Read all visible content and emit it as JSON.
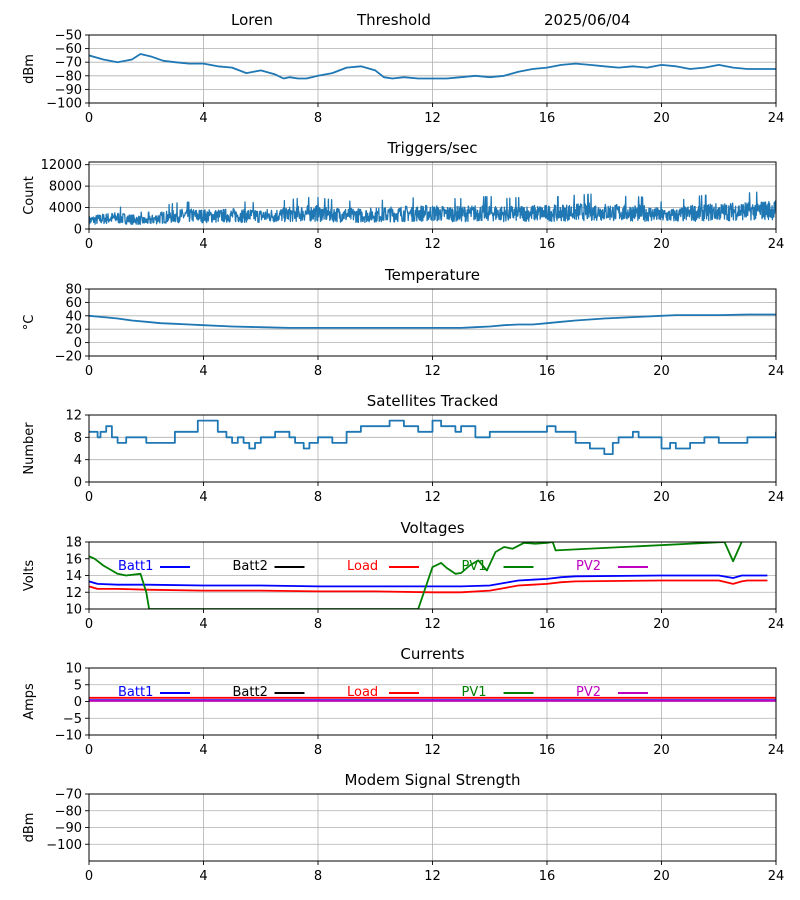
{
  "header": {
    "station": "Loren",
    "mode": "Threshold",
    "date": "2025/06/04"
  },
  "x_axis": {
    "ticks": [
      0,
      4,
      8,
      12,
      16,
      20,
      24
    ],
    "range": [
      0,
      24
    ]
  },
  "chart_data": [
    {
      "type": "line",
      "title": "",
      "ylabel": "dBm",
      "ylim": [
        -100,
        -50
      ],
      "yticks": [
        -100,
        -90,
        -80,
        -70,
        -60,
        -50
      ],
      "grid": true,
      "series": [
        {
          "color": "#1f77b4",
          "x": [
            0,
            0.5,
            1.0,
            1.5,
            1.8,
            2.2,
            2.6,
            3.0,
            3.5,
            4.0,
            4.5,
            5.0,
            5.5,
            6.0,
            6.5,
            6.8,
            7.0,
            7.3,
            7.6,
            8.0,
            8.5,
            9.0,
            9.5,
            10.0,
            10.3,
            10.6,
            11.0,
            11.5,
            12.0,
            12.5,
            13.0,
            13.5,
            14.0,
            14.5,
            15.0,
            15.5,
            16.0,
            16.5,
            17.0,
            17.5,
            18.0,
            18.5,
            19.0,
            19.5,
            20.0,
            20.5,
            21.0,
            21.5,
            22.0,
            22.5,
            23.0,
            23.5,
            24.0
          ],
          "y": [
            -65,
            -68,
            -70,
            -68,
            -64,
            -66,
            -69,
            -70,
            -71,
            -71,
            -73,
            -74,
            -78,
            -76,
            -79,
            -82,
            -81,
            -82,
            -82,
            -80,
            -78,
            -74,
            -73,
            -76,
            -81,
            -82,
            -81,
            -82,
            -82,
            -82,
            -81,
            -80,
            -81,
            -80,
            -77,
            -75,
            -74,
            -72,
            -71,
            -72,
            -73,
            -74,
            -73,
            -74,
            -72,
            -73,
            -75,
            -74,
            -72,
            -74,
            -75,
            -75,
            -75
          ]
        }
      ]
    },
    {
      "type": "line",
      "title": "Triggers/sec",
      "ylabel": "Count",
      "ylim": [
        0,
        12500
      ],
      "yticks": [
        0,
        4000,
        8000,
        12000
      ],
      "grid": true,
      "series": [
        {
          "color": "#1f77b4",
          "x": [
            0,
            0.5,
            1,
            1.5,
            2,
            2.5,
            3,
            3.5,
            4,
            4.5,
            5,
            5.5,
            6,
            6.5,
            7,
            7.5,
            8,
            8.5,
            9,
            9.5,
            10,
            10.5,
            11,
            11.5,
            12,
            12.5,
            13,
            13.5,
            14,
            14.5,
            15,
            15.5,
            16,
            16.5,
            17,
            17.5,
            18,
            18.5,
            19,
            19.5,
            20,
            20.5,
            21,
            21.5,
            22,
            22.5,
            23,
            23.5,
            24
          ],
          "y": [
            1500,
            1800,
            2000,
            1700,
            1400,
            2000,
            2300,
            2400,
            2300,
            2300,
            2400,
            2400,
            2300,
            2400,
            2600,
            2800,
            2800,
            2600,
            2500,
            2400,
            2500,
            2600,
            2700,
            2800,
            2800,
            2700,
            2700,
            2800,
            2900,
            2700,
            2800,
            2800,
            2800,
            2900,
            3000,
            3100,
            3000,
            2900,
            2900,
            2800,
            2400,
            2400,
            2800,
            3000,
            3000,
            3100,
            3200,
            3300,
            3400
          ]
        }
      ]
    },
    {
      "type": "line",
      "title": "Temperature",
      "ylabel": "°C",
      "ylim": [
        -20,
        80
      ],
      "yticks": [
        -20,
        0,
        20,
        40,
        60,
        80
      ],
      "grid": true,
      "series": [
        {
          "color": "#1f77b4",
          "x": [
            0,
            0.5,
            1,
            1.5,
            2,
            2.5,
            3,
            3.5,
            4,
            5,
            6,
            7,
            8,
            9,
            10,
            11,
            12,
            13,
            13.5,
            14,
            14.5,
            15,
            15.5,
            16,
            16.5,
            17,
            18,
            19,
            19.5,
            20,
            20.5,
            21,
            22,
            23,
            24
          ],
          "y": [
            40,
            38,
            36,
            33,
            31,
            29,
            28,
            27,
            26,
            24,
            23,
            22,
            22,
            22,
            22,
            22,
            22,
            22,
            23,
            24,
            26,
            27,
            27,
            29,
            31,
            33,
            36,
            38,
            39,
            40,
            41,
            41,
            41,
            42,
            42
          ]
        }
      ]
    },
    {
      "type": "line",
      "title": "Satellites Tracked",
      "ylabel": "Number",
      "ylim": [
        0,
        12
      ],
      "yticks": [
        0,
        4,
        8,
        12
      ],
      "grid": true,
      "series": [
        {
          "color": "#1f77b4",
          "step": true,
          "x": [
            0,
            0.3,
            0.4,
            0.6,
            0.8,
            1.0,
            1.3,
            1.8,
            2.0,
            3.0,
            3.5,
            3.8,
            4.5,
            4.8,
            5.0,
            5.2,
            5.4,
            5.6,
            5.8,
            6.0,
            6.5,
            7.0,
            7.2,
            7.5,
            7.7,
            8.0,
            8.5,
            9.0,
            9.5,
            10.0,
            10.5,
            11.0,
            11.5,
            12.0,
            12.3,
            12.8,
            13.0,
            13.5,
            14.0,
            15.5,
            16.0,
            16.3,
            17.0,
            17.5,
            18.0,
            18.3,
            18.5,
            19.0,
            19.2,
            20.0,
            20.3,
            20.5,
            21.0,
            21.5,
            22.0,
            22.5,
            23.0,
            23.5,
            24.0
          ],
          "y": [
            9,
            8,
            9,
            10,
            8,
            7,
            8,
            8,
            7,
            9,
            9,
            11,
            9,
            8,
            7,
            8,
            7,
            6,
            7,
            8,
            9,
            8,
            7,
            6,
            7,
            8,
            7,
            9,
            10,
            10,
            11,
            10,
            9,
            11,
            10,
            9,
            10,
            8,
            9,
            9,
            10,
            9,
            7,
            6,
            5,
            7,
            8,
            9,
            8,
            6,
            7,
            6,
            7,
            8,
            7,
            7,
            8,
            8,
            9
          ]
        }
      ]
    },
    {
      "type": "line",
      "title": "Voltages",
      "ylabel": "Volts",
      "ylim": [
        10,
        18
      ],
      "yticks": [
        10,
        12,
        14,
        16,
        18
      ],
      "grid": true,
      "legend": "inline-top",
      "series": [
        {
          "name": "Batt1",
          "color": "#0000ff",
          "x": [
            0,
            0.3,
            1,
            2,
            4,
            6,
            8,
            10,
            12,
            13,
            14,
            14.5,
            15,
            15.5,
            16,
            16.5,
            17,
            20,
            22,
            22.5,
            22.8,
            23,
            23.7
          ],
          "y": [
            13.3,
            13.0,
            12.9,
            12.9,
            12.8,
            12.8,
            12.7,
            12.7,
            12.7,
            12.7,
            12.8,
            13.1,
            13.4,
            13.5,
            13.6,
            13.8,
            13.9,
            14.0,
            14.0,
            13.7,
            14.0,
            14.0,
            14.0
          ]
        },
        {
          "name": "Batt2",
          "color": "#000000",
          "x": [],
          "y": []
        },
        {
          "name": "Load",
          "color": "#ff0000",
          "x": [
            0,
            0.3,
            1,
            2,
            4,
            6,
            8,
            10,
            12,
            13,
            14,
            14.5,
            15,
            15.5,
            16,
            16.5,
            17,
            20,
            22,
            22.5,
            22.8,
            23,
            23.7
          ],
          "y": [
            12.7,
            12.4,
            12.4,
            12.3,
            12.2,
            12.2,
            12.1,
            12.1,
            12.0,
            12.0,
            12.2,
            12.5,
            12.8,
            12.9,
            13.0,
            13.2,
            13.3,
            13.4,
            13.4,
            13.0,
            13.3,
            13.4,
            13.4
          ]
        },
        {
          "name": "PV1",
          "color": "#008000",
          "x": [
            0,
            0.2,
            0.5,
            0.8,
            1.0,
            1.3,
            1.8,
            2.0,
            2.1,
            11.5,
            12.0,
            12.3,
            12.5,
            12.8,
            13.0,
            13.3,
            13.6,
            13.9,
            14.2,
            14.5,
            14.8,
            15.2,
            15.6,
            16.0,
            16.2,
            16.3,
            22.2,
            22.5,
            22.8
          ],
          "y": [
            16.3,
            16.0,
            15.2,
            14.6,
            14.2,
            14.0,
            14.2,
            12.0,
            10.0,
            10.0,
            15.0,
            15.5,
            14.9,
            14.2,
            14.3,
            15.2,
            15.8,
            14.6,
            16.8,
            17.4,
            17.2,
            17.9,
            17.8,
            17.9,
            18.0,
            17.0,
            18.0,
            15.7,
            18.0
          ]
        },
        {
          "name": "PV2",
          "color": "#bf00bf",
          "x": [],
          "y": []
        }
      ]
    },
    {
      "type": "line",
      "title": "Currents",
      "ylabel": "Amps",
      "ylim": [
        -10,
        10
      ],
      "yticks": [
        -10,
        -5,
        0,
        5,
        10
      ],
      "grid": true,
      "legend": "inline-top",
      "series": [
        {
          "name": "Batt1",
          "color": "#0000ff",
          "x": [
            0,
            24
          ],
          "y": [
            0.4,
            0.4
          ]
        },
        {
          "name": "Batt2",
          "color": "#000000",
          "x": [],
          "y": []
        },
        {
          "name": "Load",
          "color": "#ff0000",
          "x": [
            0,
            24
          ],
          "y": [
            1.1,
            1.1
          ]
        },
        {
          "name": "PV1",
          "color": "#008000",
          "x": [],
          "y": []
        },
        {
          "name": "PV2",
          "color": "#bf00bf",
          "x": [
            0,
            24
          ],
          "y": [
            0.2,
            0.2
          ]
        }
      ]
    },
    {
      "type": "line",
      "title": "Modem Signal Strength",
      "ylabel": "dBm",
      "ylim": [
        -110,
        -70
      ],
      "yticks": [
        -100,
        -90,
        -80,
        -70
      ],
      "grid": true,
      "series": []
    }
  ]
}
